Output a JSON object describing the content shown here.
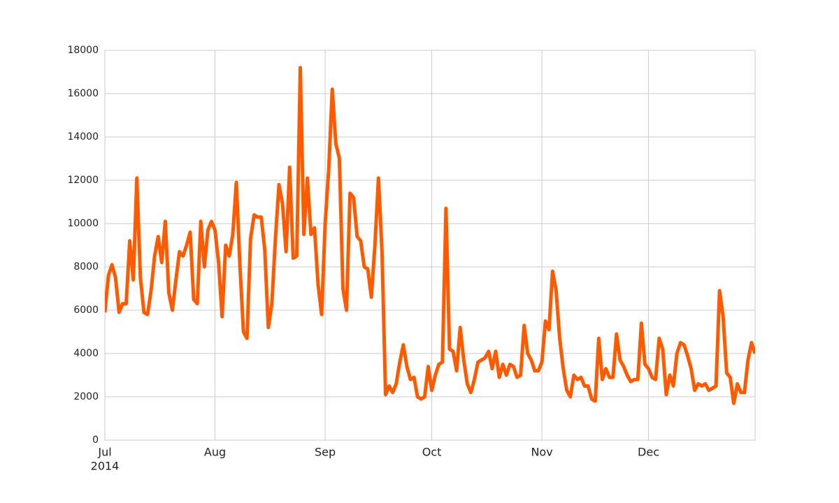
{
  "chart_data": {
    "type": "line",
    "x": [
      0,
      1,
      2,
      3,
      4,
      5,
      6,
      7,
      8,
      9,
      10,
      11,
      12,
      13,
      14,
      15,
      16,
      17,
      18,
      19,
      20,
      21,
      22,
      23,
      24,
      25,
      26,
      27,
      28,
      29,
      30,
      31,
      32,
      33,
      34,
      35,
      36,
      37,
      38,
      39,
      40,
      41,
      42,
      43,
      44,
      45,
      46,
      47,
      48,
      49,
      50,
      51,
      52,
      53,
      54,
      55,
      56,
      57,
      58,
      59,
      60,
      61,
      62,
      63,
      64,
      65,
      66,
      67,
      68,
      69,
      70,
      71,
      72,
      73,
      74,
      75,
      76,
      77,
      78,
      79,
      80,
      81,
      82,
      83,
      84,
      85,
      86,
      87,
      88,
      89,
      90,
      91,
      92,
      93,
      94,
      95,
      96,
      97,
      98,
      99,
      100,
      101,
      102,
      103,
      104,
      105,
      106,
      107,
      108,
      109,
      110,
      111,
      112,
      113,
      114,
      115,
      116,
      117,
      118,
      119,
      120,
      121,
      122,
      123,
      124,
      125,
      126,
      127,
      128,
      129,
      130,
      131,
      132,
      133,
      134,
      135,
      136,
      137,
      138,
      139,
      140,
      141,
      142,
      143,
      144,
      145,
      146,
      147,
      148,
      149,
      150,
      151,
      152,
      153,
      154,
      155,
      156,
      157,
      158,
      159,
      160,
      161,
      162,
      163,
      164,
      165,
      166,
      167,
      168,
      169,
      170,
      171,
      172,
      173,
      174,
      175,
      176,
      177,
      178,
      179,
      180,
      181,
      182,
      183
    ],
    "series": [
      {
        "color": "#ff5a00",
        "values": [
          5900,
          7600,
          8100,
          7500,
          5900,
          6300,
          6300,
          9200,
          7400,
          12100,
          7500,
          5900,
          5800,
          6900,
          8500,
          9400,
          8200,
          10100,
          6800,
          6000,
          7400,
          8700,
          8500,
          9000,
          9600,
          6500,
          6300,
          10100,
          8000,
          9700,
          10100,
          9700,
          8200,
          5700,
          9000,
          8500,
          9500,
          11900,
          8100,
          5000,
          4700,
          9300,
          10400,
          10300,
          10300,
          8800,
          5200,
          6300,
          9300,
          11800,
          10900,
          8700,
          12600,
          8400,
          8500,
          17200,
          9500,
          12100,
          9500,
          9800,
          7200,
          5800,
          10000,
          12500,
          16200,
          13700,
          13000,
          7000,
          6000,
          11400,
          11200,
          9400,
          9200,
          8000,
          7900,
          6600,
          9000,
          12100,
          8700,
          2100,
          2500,
          2200,
          2600,
          3600,
          4400,
          3400,
          2800,
          2900,
          2000,
          1900,
          2000,
          3400,
          2300,
          3000,
          3500,
          3600,
          10700,
          4200,
          4100,
          3200,
          5200,
          3700,
          2600,
          2200,
          2800,
          3600,
          3700,
          3800,
          4100,
          3300,
          4100,
          2900,
          3500,
          3000,
          3500,
          3400,
          2900,
          3000,
          5300,
          4000,
          3700,
          3200,
          3200,
          3600,
          5500,
          5100,
          7800,
          6900,
          4700,
          3300,
          2300,
          2000,
          3000,
          2800,
          2900,
          2500,
          2500,
          1900,
          1800,
          4700,
          2800,
          3300,
          2900,
          2900,
          4900,
          3700,
          3400,
          3000,
          2700,
          2800,
          2800,
          5400,
          3500,
          3300,
          2900,
          2800,
          4700,
          4200,
          2100,
          3000,
          2500,
          4000,
          4500,
          4400,
          3900,
          3300,
          2300,
          2600,
          2500,
          2600,
          2300,
          2400,
          2500,
          6900,
          5700,
          3100,
          2900,
          1700,
          2600,
          2200,
          2200,
          3700,
          4500,
          4000
        ]
      }
    ],
    "xlim": [
      0,
      183
    ],
    "xticks": [
      {
        "value": 0,
        "label": "Jul",
        "sublabel": "2014"
      },
      {
        "value": 31,
        "label": "Aug"
      },
      {
        "value": 62,
        "label": "Sep"
      },
      {
        "value": 92,
        "label": "Oct"
      },
      {
        "value": 123,
        "label": "Nov"
      },
      {
        "value": 153,
        "label": "Dec"
      }
    ],
    "ylim": [
      0,
      18000
    ],
    "yticks": [
      0,
      2000,
      4000,
      6000,
      8000,
      10000,
      12000,
      14000,
      16000,
      18000
    ],
    "grid": true
  }
}
